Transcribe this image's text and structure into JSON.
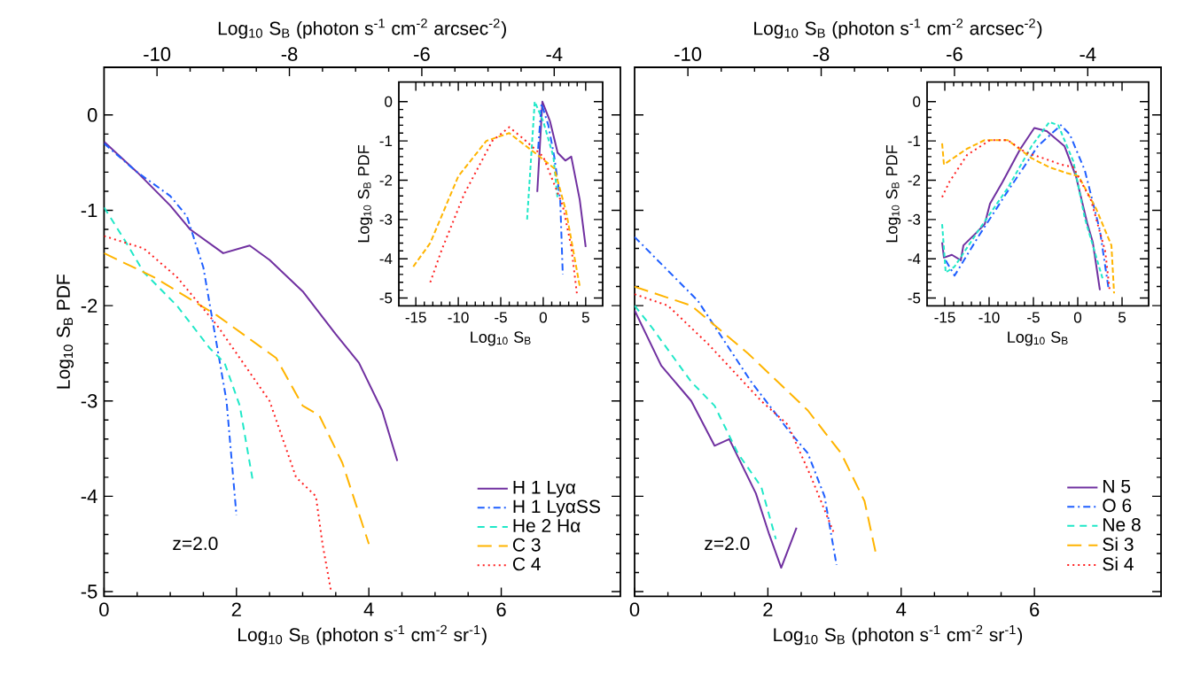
{
  "chart_data": [
    {
      "type": "line",
      "xlabel": "Log$_{10}$ S$_{B}$ (photon s$^{-1}$ cm$^{-2}$ sr$^{-1}$)",
      "ylabel": "Log$_{10}$ S$_{B}$ PDF",
      "x2label": "Log$_{10}$ S$_{B}$ (photon s$^{-1}$ cm$^{-2}$ arcsec$^{-2}$)",
      "xlim": [
        0,
        7.8
      ],
      "ylim": [
        -5.05,
        0.5
      ],
      "xticks": [
        0,
        2,
        4,
        6
      ],
      "yticks": [
        -5,
        -4,
        -3,
        -2,
        -1,
        0
      ],
      "x2lim": [
        -10.8,
        -3.0
      ],
      "x2ticks": [
        -10,
        -8,
        -6,
        -4
      ],
      "legend": "bottom right",
      "annotations": [
        "z=2.0"
      ],
      "series": [
        {
          "name": "H 1 Lyα",
          "color": "#7030a0",
          "line_style": "solid",
          "x": [
            0,
            0.5,
            1.0,
            1.3,
            1.8,
            2.2,
            2.5,
            3.0,
            3.5,
            3.85,
            4.2,
            4.43
          ],
          "values": [
            -0.28,
            -0.6,
            -0.95,
            -1.2,
            -1.45,
            -1.37,
            -1.52,
            -1.85,
            -2.3,
            -2.6,
            -3.1,
            -3.63
          ]
        },
        {
          "name": "H 1 LyαSS",
          "color": "#1f5fff",
          "line_style": "dashdot",
          "x": [
            0,
            0.5,
            1.0,
            1.25,
            1.5,
            1.65,
            1.85,
            2.0
          ],
          "values": [
            -0.3,
            -0.6,
            -0.85,
            -1.06,
            -1.6,
            -2.2,
            -3.0,
            -4.2
          ]
        },
        {
          "name": "He 2 Hα",
          "color": "#20e8c8",
          "line_style": "dashed",
          "x": [
            0,
            0.3,
            0.6,
            1.1,
            1.6,
            1.82,
            2.05,
            2.25
          ],
          "values": [
            -0.97,
            -1.3,
            -1.65,
            -2.0,
            -2.45,
            -2.6,
            -3.05,
            -3.85
          ]
        },
        {
          "name": "C 3",
          "color": "#ffb400",
          "line_style": "longdashed",
          "x": [
            0,
            0.75,
            1.7,
            2.1,
            2.6,
            3.0,
            3.25,
            3.6,
            4.0
          ],
          "values": [
            -1.45,
            -1.7,
            -2.1,
            -2.3,
            -2.55,
            -3.05,
            -3.15,
            -3.65,
            -4.5
          ]
        },
        {
          "name": "C 4",
          "color": "#ff2020",
          "line_style": "dotted",
          "x": [
            0,
            0.6,
            1.1,
            1.7,
            2.0,
            2.5,
            2.9,
            3.2,
            3.3,
            3.43
          ],
          "values": [
            -1.27,
            -1.4,
            -1.7,
            -2.2,
            -2.5,
            -3.0,
            -3.8,
            -4.0,
            -4.5,
            -5.0
          ]
        }
      ]
    },
    {
      "type": "line",
      "xlabel": "Log$_{10}$ S$_{B}$",
      "ylabel": "Log$_{10}$ S$_{B}$ PDF",
      "xlim": [
        -17,
        7
      ],
      "ylim": [
        -5.2,
        0.5
      ],
      "xticks": [
        -15,
        -10,
        -5,
        0,
        5
      ],
      "yticks": [
        -5,
        -4,
        -3,
        -2,
        -1,
        0
      ],
      "series": [
        {
          "color": "#7030a0",
          "line_style": "solid",
          "x": [
            -0.7,
            -0.1,
            0.8,
            1.7,
            2.6,
            3.3,
            4.3,
            5.0
          ],
          "values": [
            -2.3,
            0.0,
            -0.5,
            -1.3,
            -1.5,
            -1.4,
            -2.5,
            -3.7
          ]
        },
        {
          "color": "#1f5fff",
          "line_style": "dashdot",
          "x": [
            -0.6,
            -0.2,
            0.6,
            1.3,
            2.0,
            2.3
          ],
          "values": [
            -1.2,
            -0.05,
            -0.6,
            -1.4,
            -2.5,
            -4.4
          ]
        },
        {
          "color": "#20e8c8",
          "line_style": "dashed",
          "x": [
            -1.9,
            -1.0,
            0.0,
            1.2,
            1.7
          ],
          "values": [
            -3.0,
            0.0,
            -0.5,
            -1.4,
            -2.5
          ]
        },
        {
          "color": "#ffb400",
          "line_style": "longdashed",
          "x": [
            -15.3,
            -13.3,
            -10,
            -6.7,
            -4,
            -0.7,
            1.3,
            2.7,
            4.3
          ],
          "values": [
            -4.2,
            -3.6,
            -1.9,
            -1.0,
            -0.8,
            -1.35,
            -1.7,
            -2.8,
            -4.7
          ]
        },
        {
          "color": "#ff2020",
          "line_style": "dotted",
          "x": [
            -13.3,
            -12,
            -9.3,
            -6,
            -4,
            -2.3,
            0,
            2.3,
            3.3,
            4.0
          ],
          "values": [
            -4.6,
            -3.8,
            -2.35,
            -1.0,
            -0.65,
            -0.95,
            -1.4,
            -2.65,
            -3.7,
            -4.95
          ]
        }
      ]
    },
    {
      "type": "line",
      "xlabel": "Log$_{10}$ S$_{B}$ (photon s$^{-1}$ cm$^{-2}$ sr$^{-1}$)",
      "x2label": "Log$_{10}$ S$_{B}$ (photon s$^{-1}$ cm$^{-2}$ arcsec$^{-2}$)",
      "xlim": [
        0,
        7.9
      ],
      "ylim": [
        -5.05,
        0.5
      ],
      "xticks": [
        0,
        2,
        4,
        6
      ],
      "yticks": [
        -5,
        -4,
        -3,
        -2,
        -1,
        0
      ],
      "x2lim": [
        -10.8,
        -2.9
      ],
      "x2ticks": [
        -10,
        -8,
        -6,
        -4
      ],
      "tick_labels": "x",
      "legend": "bottom right",
      "annotations": [
        "z=2.0"
      ],
      "series": [
        {
          "name": "N 5",
          "color": "#7030a0",
          "line_style": "solid",
          "x": [
            0,
            0.4,
            0.85,
            1.2,
            1.42,
            1.82,
            2.02,
            2.2,
            2.43
          ],
          "values": [
            -2.05,
            -2.63,
            -3.0,
            -3.47,
            -3.4,
            -3.97,
            -4.4,
            -4.75,
            -4.33
          ]
        },
        {
          "name": "O 6",
          "color": "#1f5fff",
          "line_style": "dashdot",
          "x": [
            0,
            0.95,
            1.75,
            2.3,
            2.6,
            2.85,
            3.03
          ],
          "values": [
            -1.28,
            -1.95,
            -2.8,
            -3.3,
            -3.55,
            -4.0,
            -4.72
          ]
        },
        {
          "name": "Ne 8",
          "color": "#20e8c8",
          "line_style": "dashed",
          "x": [
            0,
            0.25,
            0.85,
            1.2,
            1.55,
            1.9,
            2.12
          ],
          "values": [
            -2.0,
            -2.22,
            -2.8,
            -3.05,
            -3.55,
            -3.9,
            -4.45
          ]
        },
        {
          "name": "Si 3",
          "color": "#ffb400",
          "line_style": "longdashed",
          "x": [
            0,
            0.85,
            1.7,
            2.6,
            3.1,
            3.45,
            3.63
          ],
          "values": [
            -1.8,
            -2.0,
            -2.5,
            -3.1,
            -3.55,
            -4.05,
            -4.63
          ]
        },
        {
          "name": "Si 4",
          "color": "#ff2020",
          "line_style": "dotted",
          "x": [
            0,
            0.5,
            1.1,
            1.9,
            2.3,
            2.65,
            3.0
          ],
          "values": [
            -1.88,
            -2.0,
            -2.4,
            -3.0,
            -3.25,
            -3.8,
            -4.4
          ]
        }
      ]
    },
    {
      "type": "line",
      "xlabel": "Log$_{10}$ S$_{B}$",
      "ylabel": "Log$_{10}$ S$_{B}$ PDF",
      "xlim": [
        -17,
        8
      ],
      "ylim": [
        -5.2,
        0.5
      ],
      "xticks": [
        -15,
        -10,
        -5,
        0,
        5
      ],
      "yticks": [
        -5,
        -4,
        -3,
        -2,
        -1,
        0
      ],
      "series": [
        {
          "color": "#7030a0",
          "line_style": "solid",
          "x": [
            -15.3,
            -15.1,
            -14.2,
            -13.2,
            -12.9,
            -11.5,
            -10.5,
            -9.9,
            -8.5,
            -6.5,
            -4.9,
            -3.5,
            -1.5,
            -0.2,
            1.1,
            1.7,
            2.5
          ],
          "values": [
            -3.58,
            -3.97,
            -3.9,
            -4.04,
            -3.66,
            -3.35,
            -3.12,
            -2.6,
            -2.05,
            -1.21,
            -0.67,
            -0.75,
            -1.13,
            -1.9,
            -3.12,
            -3.58,
            -4.8
          ]
        },
        {
          "color": "#1f5fff",
          "line_style": "dashdot",
          "x": [
            -14.9,
            -13.9,
            -11.2,
            -7.9,
            -4.5,
            -1.9,
            -0.9,
            0.8,
            2.5,
            3.5
          ],
          "values": [
            -4.04,
            -4.43,
            -3.43,
            -2.28,
            -1.13,
            -0.6,
            -0.83,
            -1.75,
            -3.28,
            -4.8
          ]
        },
        {
          "color": "#20e8c8",
          "line_style": "dashed",
          "x": [
            -15.3,
            -14.9,
            -13.9,
            -11.2,
            -7.9,
            -5.2,
            -3.2,
            -2.2,
            -0.5,
            0.8,
            2.8
          ],
          "values": [
            -3.12,
            -4.35,
            -4.2,
            -3.28,
            -2.2,
            -1.13,
            -0.52,
            -0.6,
            -1.52,
            -2.97,
            -4.5
          ]
        },
        {
          "color": "#ffb400",
          "line_style": "longdashed",
          "x": [
            -15.3,
            -15.1,
            -12.5,
            -10.5,
            -7.9,
            -5.2,
            -3.2,
            -1.2,
            0.1,
            2.1,
            3.8,
            4.1
          ],
          "values": [
            -1.06,
            -1.6,
            -1.2,
            -0.98,
            -0.98,
            -1.44,
            -1.67,
            -1.82,
            -1.9,
            -2.74,
            -3.66,
            -4.88
          ]
        },
        {
          "color": "#ff2020",
          "line_style": "dotted",
          "x": [
            -15.3,
            -14.5,
            -12.5,
            -9.9,
            -7.9,
            -5.9,
            -3.9,
            -1.9,
            -0.5,
            1.5,
            3.1,
            3.6
          ],
          "values": [
            -2.43,
            -2.05,
            -1.36,
            -0.98,
            -0.98,
            -1.29,
            -1.44,
            -1.6,
            -1.67,
            -2.51,
            -3.81,
            -4.8
          ]
        }
      ]
    }
  ]
}
